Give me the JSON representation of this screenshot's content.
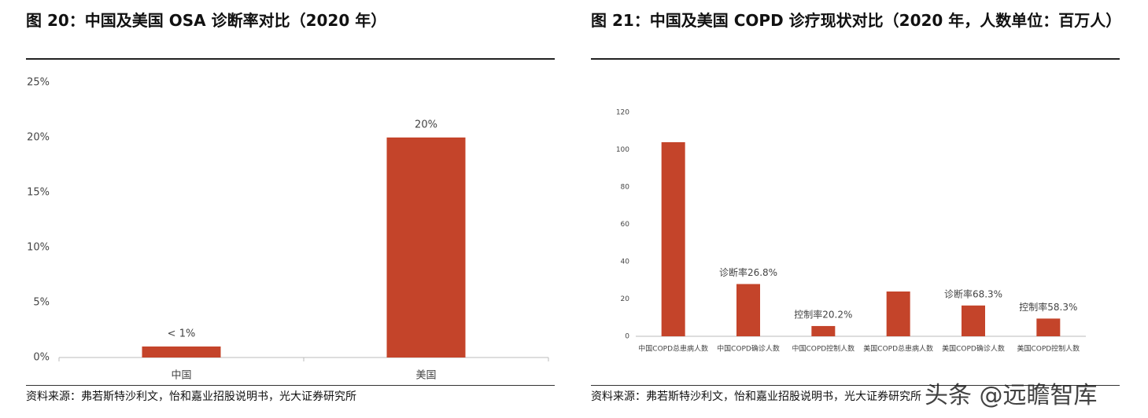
{
  "chart_data": [
    {
      "type": "bar",
      "title": "图 20：中国及美国 OSA 诊断率对比（2020 年）",
      "categories": [
        "中国",
        "美国"
      ],
      "values": [
        1,
        20
      ],
      "value_labels": [
        "< 1%",
        "20%"
      ],
      "color": "#c4442a",
      "ylim": [
        0,
        25
      ],
      "yticks": [
        {
          "value": 0,
          "label": "0%"
        },
        {
          "value": 5,
          "label": "5%"
        },
        {
          "value": 10,
          "label": "10%"
        },
        {
          "value": 15,
          "label": "15%"
        },
        {
          "value": 20,
          "label": "20%"
        },
        {
          "value": 25,
          "label": "25%"
        }
      ],
      "grid": false,
      "source": "资料来源：弗若斯特沙利文，怡和嘉业招股说明书，光大证券研究所"
    },
    {
      "type": "bar",
      "title": "图 21：中国及美国 COPD 诊疗现状对比（2020 年，人数单位：百万人）",
      "categories": [
        "中国COPD总患病人数",
        "中国COPD确诊人数",
        "中国COPD控制人数",
        "美国COPD总患病人数",
        "美国COPD确诊人数",
        "美国COPD控制人数"
      ],
      "values": [
        104,
        28,
        5.5,
        24,
        16.5,
        9.5
      ],
      "annotations": [
        null,
        "诊断率26.8%",
        "控制率20.2%",
        null,
        "诊断率68.3%",
        "控制率58.3%"
      ],
      "color": "#c4442a",
      "ylim": [
        0,
        120
      ],
      "yticks": [
        0,
        20,
        40,
        60,
        80,
        100,
        120
      ],
      "grid": false,
      "source": "资料来源：弗若斯特沙利文，怡和嘉业招股说明书，光大证券研究所"
    }
  ],
  "watermark": "头条 @远瞻智库"
}
